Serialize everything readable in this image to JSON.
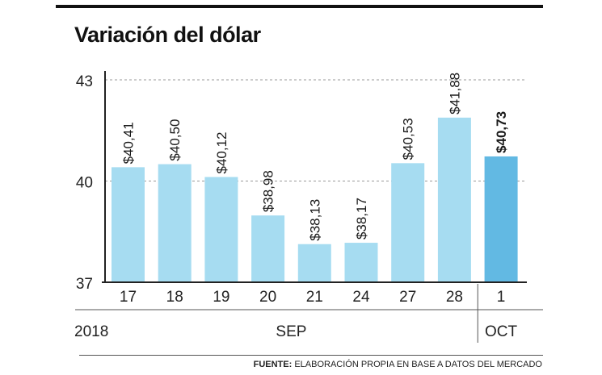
{
  "title": "Variación del dólar",
  "source": {
    "label": "FUENTE:",
    "text": "ELABORACIÓN PROPIA EN BASE A DATOS DEL MERCADO"
  },
  "chart_data": {
    "type": "bar",
    "title": "Variación del dólar",
    "categories": [
      "17",
      "18",
      "19",
      "20",
      "21",
      "24",
      "27",
      "28",
      "1"
    ],
    "values": [
      40.41,
      40.5,
      40.12,
      38.98,
      38.13,
      38.17,
      40.53,
      41.88,
      40.73
    ],
    "data_labels": [
      "$40,41",
      "$40,50",
      "$40,12",
      "$38,98",
      "$38,13",
      "$38,17",
      "$40,53",
      "$41,88",
      "$40,73"
    ],
    "highlight_index": 8,
    "yticks": [
      "43",
      "40",
      "37"
    ],
    "ytick_values": [
      43,
      40,
      37
    ],
    "ylim": [
      37,
      43
    ],
    "grid": true,
    "year_label": "2018",
    "month_groups": [
      {
        "label": "SEP",
        "from": 0,
        "to": 7
      },
      {
        "label": "OCT",
        "from": 8,
        "to": 8
      }
    ],
    "colors": {
      "bar": "#a6dcf1",
      "highlight": "#62b9e3",
      "grid": "#999999",
      "axis": "#222222"
    }
  }
}
